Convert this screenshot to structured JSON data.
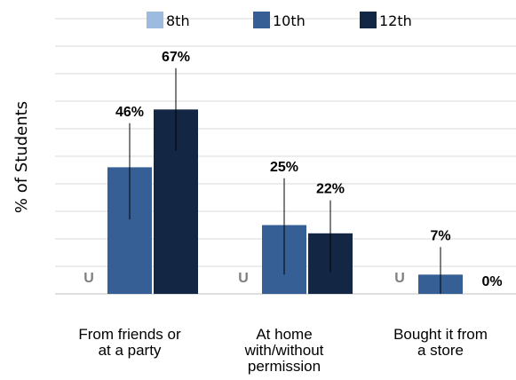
{
  "chart_data": {
    "type": "bar",
    "title": "",
    "xlabel": "",
    "ylabel": "% of Students",
    "ylim": [
      0,
      70
    ],
    "gridlines": true,
    "legend_position": "top",
    "categories": [
      "From friends or at a party",
      "At home with/without permission",
      "Bought it from a store"
    ],
    "category_lines": [
      [
        "From friends or",
        "at a party"
      ],
      [
        "At home",
        "with/without",
        "permission"
      ],
      [
        "Bought it from",
        "a store"
      ]
    ],
    "series": [
      {
        "name": "8th",
        "color": "#9dbbdf",
        "values": [
          null,
          null,
          null
        ],
        "labels": [
          "U",
          "U",
          "U"
        ]
      },
      {
        "name": "10th",
        "color": "#365f95",
        "values": [
          46,
          25,
          7
        ],
        "labels": [
          "46%",
          "25%",
          "7%"
        ],
        "err_low": [
          27,
          7,
          0
        ],
        "err_high": [
          62,
          42,
          17
        ]
      },
      {
        "name": "12th",
        "color": "#132745",
        "values": [
          67,
          22,
          0
        ],
        "labels": [
          "67%",
          "22%",
          "0%"
        ],
        "err_low": [
          52,
          8,
          null
        ],
        "err_high": [
          82,
          34,
          null
        ]
      }
    ]
  }
}
